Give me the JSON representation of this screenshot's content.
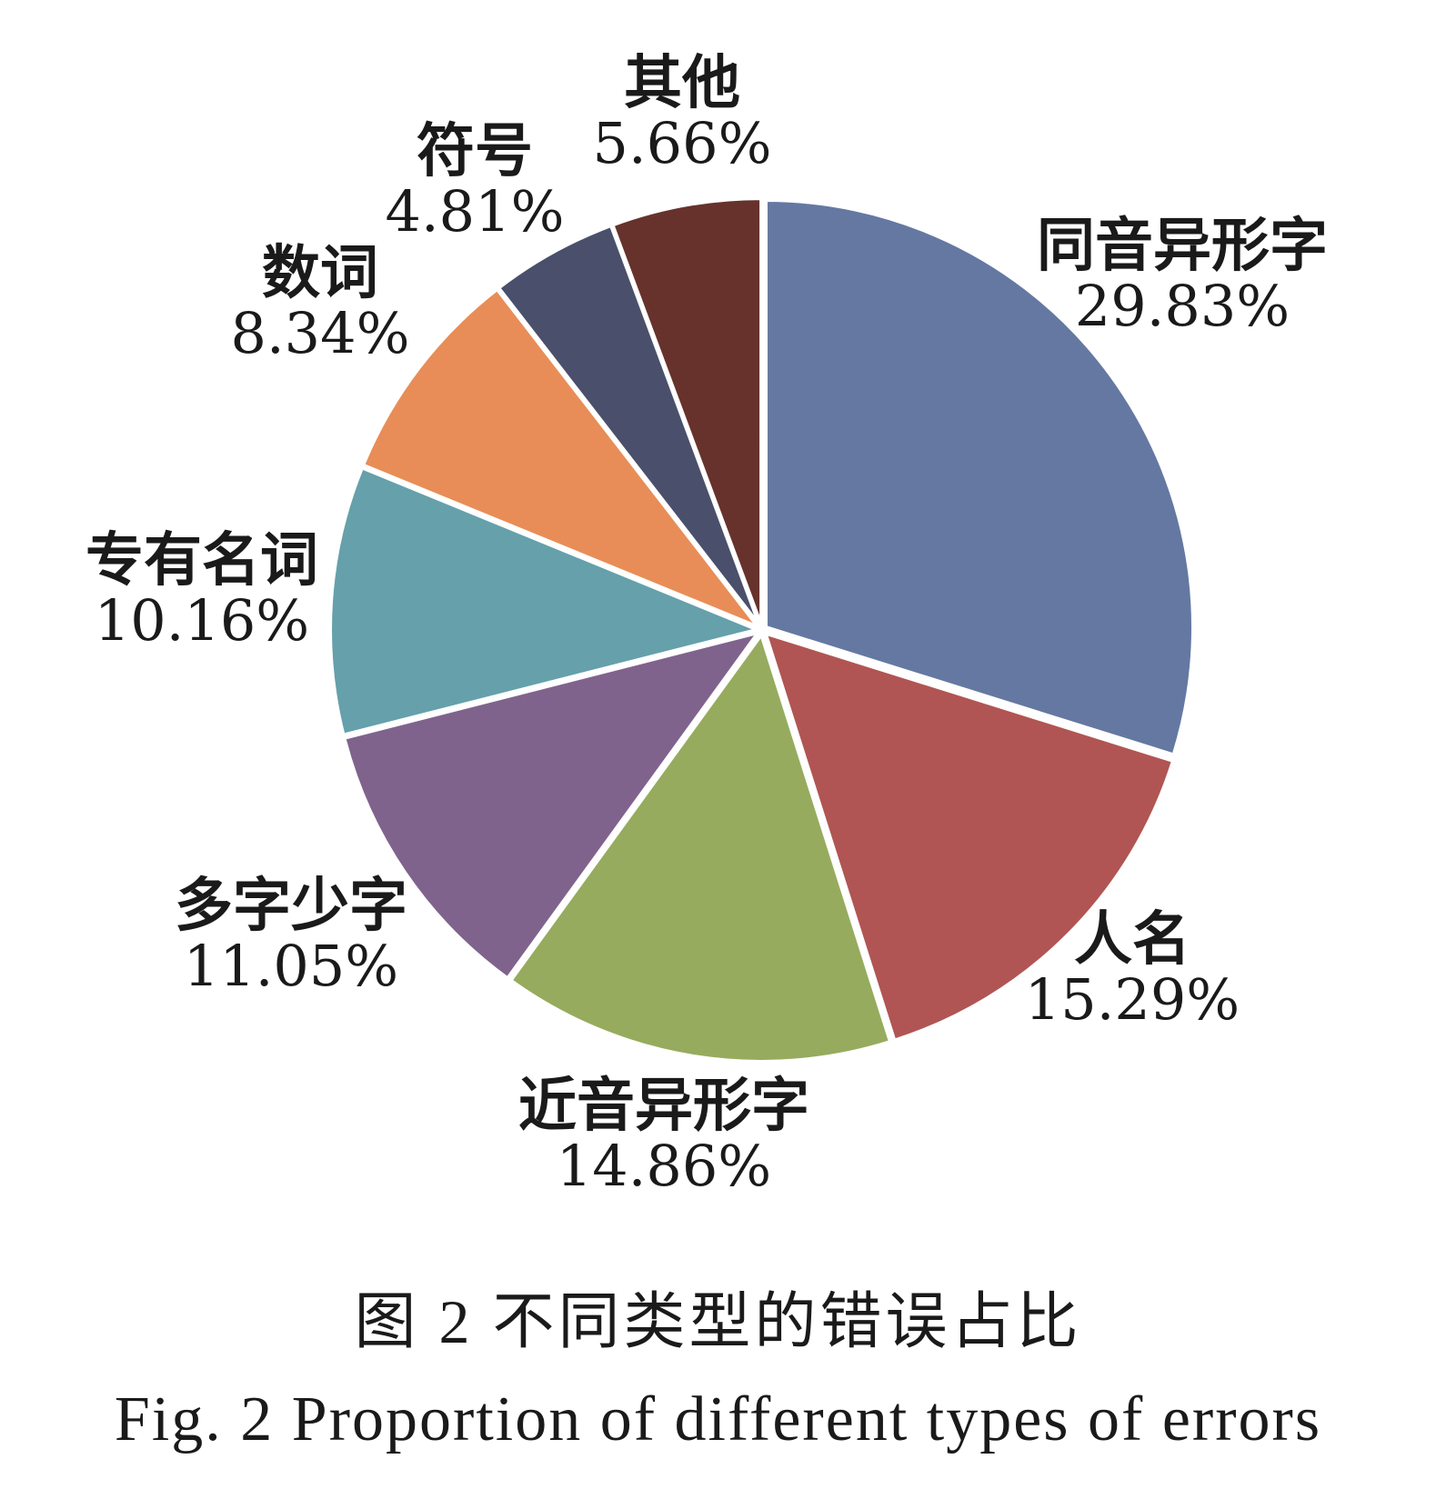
{
  "chart_data": {
    "type": "pie",
    "slices": [
      {
        "label": "同音异形字",
        "value": 29.83,
        "value_text": "29.83%",
        "color": "#6478a2"
      },
      {
        "label": "人名",
        "value": 15.29,
        "value_text": "15.29%",
        "color": "#b05553"
      },
      {
        "label": "近音异形字",
        "value": 14.86,
        "value_text": "14.86%",
        "color": "#97ab5e"
      },
      {
        "label": "多字少字",
        "value": 11.05,
        "value_text": "11.05%",
        "color": "#80638d"
      },
      {
        "label": "专有名词",
        "value": 10.16,
        "value_text": "10.16%",
        "color": "#65a0ab"
      },
      {
        "label": "数词",
        "value": 8.34,
        "value_text": "8.34%",
        "color": "#e88d57"
      },
      {
        "label": "符号",
        "value": 4.81,
        "value_text": "4.81%",
        "color": "#4a4f6b"
      },
      {
        "label": "其他",
        "value": 5.66,
        "value_text": "5.66%",
        "color": "#67322c"
      }
    ],
    "start_angle_deg": 0,
    "direction": "clockwise"
  },
  "caption": {
    "cn": "图 2   不同类型的错误占比",
    "en": "Fig. 2   Proportion of different types of errors"
  }
}
